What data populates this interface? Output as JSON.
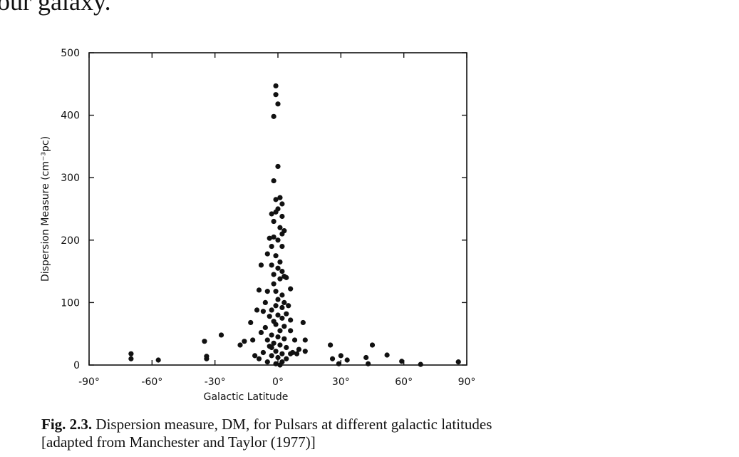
{
  "heading": "our galaxy.",
  "chart_data": {
    "type": "scatter",
    "xlabel": "Galactic Latitude",
    "ylabel": "Dispersion Measure (cm⁻³pc)",
    "xlim": [
      -90,
      90
    ],
    "xticks": [
      {
        "value": -90,
        "label": "-90°"
      },
      {
        "value": -60,
        "label": "-60°"
      },
      {
        "value": -30,
        "label": "-30°"
      },
      {
        "value": 0,
        "label": "0°"
      },
      {
        "value": 30,
        "label": "30°"
      },
      {
        "value": 60,
        "label": "60°"
      },
      {
        "value": 90,
        "label": "90°"
      }
    ],
    "ylim": [
      0,
      500
    ],
    "yticks": [
      0,
      100,
      200,
      300,
      400,
      500
    ],
    "color": "#111111",
    "x": [
      -70,
      -70,
      -57,
      -35,
      -34,
      -34,
      -27,
      25,
      26,
      30,
      29,
      33,
      42,
      43,
      45,
      52,
      59,
      68,
      86,
      -1,
      -1,
      0,
      -2,
      0,
      -2,
      -1,
      1,
      2,
      0,
      -3,
      -1,
      2,
      -2,
      1,
      3,
      2,
      -2,
      -4,
      0,
      -3,
      2,
      -5,
      -1,
      1,
      -3,
      -8,
      0,
      2,
      -2,
      3,
      1,
      4,
      -2,
      6,
      -5,
      -1,
      2,
      -9,
      0,
      3,
      -6,
      5,
      -1,
      2,
      -3,
      -10,
      -7,
      0,
      4,
      -4,
      2,
      -2,
      6,
      -1,
      -13,
      3,
      -6,
      1,
      6,
      -8,
      -3,
      0,
      3,
      8,
      -5,
      -16,
      -12,
      13,
      12,
      -2,
      1,
      -18,
      -4,
      4,
      10,
      13,
      -1,
      2,
      -7,
      6,
      9,
      -11,
      -3,
      0,
      4,
      -9,
      -5,
      2,
      -1,
      1,
      -3,
      7
    ],
    "values": [
      18,
      10,
      8,
      38,
      14,
      10,
      48,
      32,
      10,
      15,
      2,
      8,
      12,
      2,
      32,
      16,
      6,
      1,
      5,
      447,
      433,
      418,
      398,
      318,
      295,
      265,
      268,
      258,
      250,
      242,
      245,
      238,
      230,
      220,
      215,
      210,
      205,
      203,
      200,
      190,
      190,
      178,
      175,
      165,
      160,
      160,
      155,
      150,
      145,
      142,
      138,
      140,
      130,
      122,
      118,
      118,
      112,
      120,
      105,
      100,
      100,
      95,
      95,
      92,
      88,
      88,
      86,
      80,
      82,
      78,
      75,
      70,
      72,
      65,
      68,
      62,
      60,
      55,
      55,
      52,
      48,
      45,
      42,
      40,
      40,
      38,
      40,
      40,
      68,
      35,
      32,
      32,
      30,
      28,
      25,
      22,
      22,
      18,
      20,
      18,
      18,
      15,
      15,
      12,
      10,
      10,
      5,
      5,
      2,
      0,
      28,
      20
    ]
  },
  "caption": {
    "label": "Fig. 2.3.",
    "line1": "Dispersion measure, DM, for Pulsars at different galactic latitudes",
    "line2": "[adapted from Manchester and Taylor (1977)]"
  }
}
